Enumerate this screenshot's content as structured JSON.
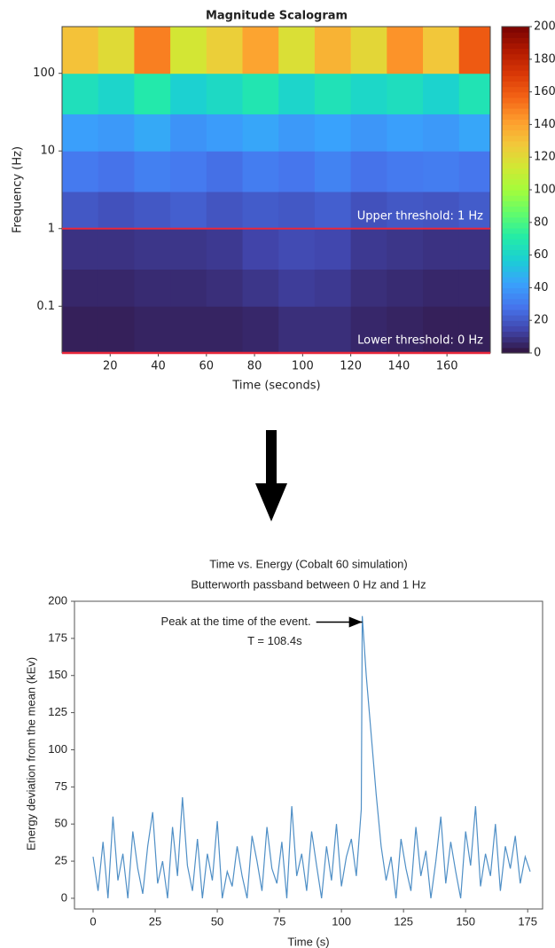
{
  "chart_data": [
    {
      "type": "heatmap",
      "title": "Magnitude Scalogram",
      "xlabel": "Time (seconds)",
      "ylabel": "Frequency (Hz)",
      "log_y": true,
      "xlim": [
        0,
        178
      ],
      "ylim": [
        0.025,
        400
      ],
      "xticks": [
        20,
        40,
        60,
        80,
        100,
        120,
        140,
        160
      ],
      "yticks": [
        0.1,
        1,
        10,
        100
      ],
      "x_edges": [
        0,
        15,
        30,
        45,
        60,
        75,
        90,
        105,
        120,
        135,
        150,
        165,
        178
      ],
      "y_edges": [
        0.025,
        0.1,
        0.3,
        1,
        3,
        10,
        30,
        100,
        400
      ],
      "z": [
        [
          4,
          4,
          5,
          5,
          5,
          6,
          8,
          8,
          6,
          5,
          4,
          4
        ],
        [
          6,
          6,
          7,
          7,
          8,
          10,
          12,
          11,
          8,
          7,
          6,
          6
        ],
        [
          9,
          9,
          10,
          10,
          11,
          14,
          16,
          15,
          11,
          10,
          9,
          9
        ],
        [
          20,
          18,
          20,
          22,
          19,
          21,
          20,
          22,
          18,
          20,
          19,
          21
        ],
        [
          30,
          28,
          32,
          30,
          27,
          31,
          29,
          33,
          28,
          30,
          31,
          29
        ],
        [
          42,
          40,
          45,
          38,
          41,
          44,
          40,
          43,
          39,
          42,
          40,
          44
        ],
        [
          65,
          60,
          70,
          58,
          62,
          68,
          60,
          66,
          61,
          64,
          59,
          67
        ],
        [
          130,
          120,
          150,
          115,
          125,
          140,
          118,
          135,
          122,
          145,
          128,
          160
        ]
      ],
      "colorbar_lim": [
        0,
        200
      ],
      "colorbar_ticks": [
        0,
        20,
        40,
        60,
        80,
        100,
        120,
        140,
        160,
        180,
        200
      ],
      "colormap": [
        "#30123b",
        "#4145ab",
        "#4675ed",
        "#39a2fc",
        "#1bcfd4",
        "#24eca6",
        "#61fc6c",
        "#a4fc3b",
        "#d1e834",
        "#f3c63a",
        "#fe9b2d",
        "#f36315",
        "#d93806",
        "#b11901",
        "#7a0402"
      ],
      "threshold_color": "#e8283c",
      "upper_threshold": 1,
      "annotations": [
        "Upper threshold: 1 Hz",
        "Lower threshold: 0 Hz"
      ]
    },
    {
      "type": "line",
      "title": [
        "Time vs. Energy (Cobalt 60 simulation)",
        "Butterworth passband between 0 Hz and 1 Hz"
      ],
      "xlabel": "Time (s)",
      "ylabel": "Energy deviation from the mean (kEv)",
      "xlim": [
        -7.5,
        181
      ],
      "ylim": [
        -7.2,
        200
      ],
      "xticks": [
        0,
        25,
        50,
        75,
        100,
        125,
        150,
        175
      ],
      "yticks": [
        0,
        25,
        50,
        75,
        100,
        125,
        150,
        175,
        200
      ],
      "color": "#4f8fc6",
      "x": [
        0,
        2,
        4,
        6,
        8,
        10,
        12,
        14,
        16,
        18,
        20,
        22,
        24,
        26,
        28,
        30,
        32,
        34,
        36,
        38,
        40,
        42,
        44,
        46,
        48,
        50,
        52,
        54,
        56,
        58,
        60,
        62,
        64,
        66,
        68,
        70,
        72,
        74,
        76,
        78,
        80,
        82,
        84,
        86,
        88,
        90,
        92,
        94,
        96,
        98,
        100,
        102,
        104,
        106,
        108,
        108.4,
        110,
        112,
        114,
        116,
        118,
        120,
        122,
        124,
        126,
        128,
        130,
        132,
        134,
        136,
        138,
        140,
        142,
        144,
        146,
        148,
        150,
        152,
        154,
        156,
        158,
        160,
        162,
        164,
        166,
        168,
        170,
        172,
        174,
        176
      ],
      "values": [
        28,
        5,
        38,
        0,
        55,
        12,
        30,
        0,
        45,
        20,
        3,
        35,
        58,
        10,
        25,
        0,
        48,
        15,
        68,
        22,
        5,
        40,
        0,
        30,
        12,
        52,
        0,
        18,
        8,
        35,
        15,
        0,
        42,
        25,
        5,
        48,
        20,
        10,
        38,
        0,
        62,
        15,
        30,
        5,
        45,
        22,
        0,
        35,
        12,
        50,
        8,
        28,
        40,
        15,
        60,
        190,
        150,
        110,
        70,
        35,
        12,
        28,
        0,
        40,
        20,
        5,
        48,
        15,
        32,
        0,
        25,
        55,
        10,
        38,
        18,
        0,
        45,
        22,
        62,
        8,
        30,
        15,
        50,
        5,
        35,
        20,
        42,
        10,
        28,
        18
      ],
      "annotation": {
        "text": [
          "Peak at the time of the event.",
          "T = 108.4s"
        ],
        "xy": [
          108.4,
          186
        ]
      }
    }
  ]
}
